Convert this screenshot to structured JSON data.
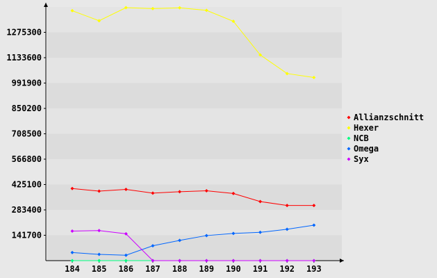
{
  "chart_data": {
    "type": "line",
    "title": "",
    "xlabel": "",
    "ylabel": "",
    "categories": [
      "184",
      "185",
      "186",
      "187",
      "188",
      "189",
      "190",
      "191",
      "192",
      "193"
    ],
    "y_ticks": [
      "141700",
      "283400",
      "425100",
      "566800",
      "708500",
      "850200",
      "991900",
      "1133600",
      "1275300"
    ],
    "ylim": [
      0,
      1417000
    ],
    "grid": "horizontal alternating bands",
    "legend_position": "right",
    "series": [
      {
        "name": "Allianzschnitt",
        "color": "#ff0000",
        "values": [
          403000,
          388000,
          398000,
          377000,
          385000,
          390000,
          375000,
          330000,
          308000,
          308000
        ]
      },
      {
        "name": "Hexer",
        "color": "#ffff00",
        "values": [
          1396000,
          1340000,
          1413000,
          1408000,
          1412000,
          1398000,
          1337000,
          1149000,
          1045000,
          1023000
        ]
      },
      {
        "name": "NCB",
        "color": "#00ff80",
        "values": [
          0,
          0,
          0,
          0,
          0,
          0,
          0,
          0,
          0,
          0
        ]
      },
      {
        "name": "Omega",
        "color": "#0066ff",
        "values": [
          45000,
          35000,
          30000,
          83000,
          113000,
          140000,
          152000,
          158000,
          175000,
          198000
        ]
      },
      {
        "name": "Syx",
        "color": "#cc00ff",
        "values": [
          165000,
          168000,
          150000,
          0,
          0,
          0,
          0,
          0,
          0,
          0
        ]
      }
    ]
  }
}
